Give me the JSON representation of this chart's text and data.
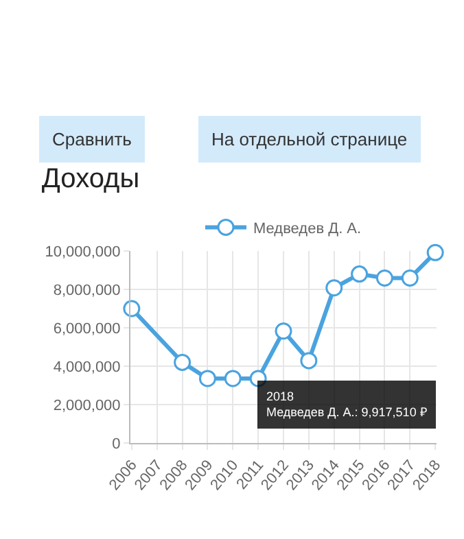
{
  "chart_data": {
    "type": "line",
    "title": "Доходы",
    "categories": [
      "2006",
      "2007",
      "2008",
      "2009",
      "2010",
      "2011",
      "2012",
      "2013",
      "2014",
      "2015",
      "2016",
      "2017",
      "2018"
    ],
    "series": [
      {
        "name": "Медведев Д. А.",
        "color": "#4aa3df",
        "values": [
          7000000,
          null,
          4200000,
          3360000,
          3360000,
          3360000,
          5830000,
          4290000,
          8080000,
          8800000,
          8590000,
          8590000,
          9917510
        ]
      }
    ],
    "ylim": [
      0,
      10000000
    ],
    "yticks": [
      {
        "value": 0,
        "label": "0"
      },
      {
        "value": 2000000,
        "label": "2,000,000"
      },
      {
        "value": 4000000,
        "label": "4,000,000"
      },
      {
        "value": 6000000,
        "label": "6,000,000"
      },
      {
        "value": 8000000,
        "label": "8,000,000"
      },
      {
        "value": 10000000,
        "label": "10,000,000"
      }
    ],
    "grid": true,
    "legend": "top",
    "marker": "circle",
    "line_style": "solid",
    "annotations": [
      "Сравнить",
      "На отдельной странице",
      "2018\nМедведев Д. А.: 9,917,510 ₽"
    ]
  }
}
